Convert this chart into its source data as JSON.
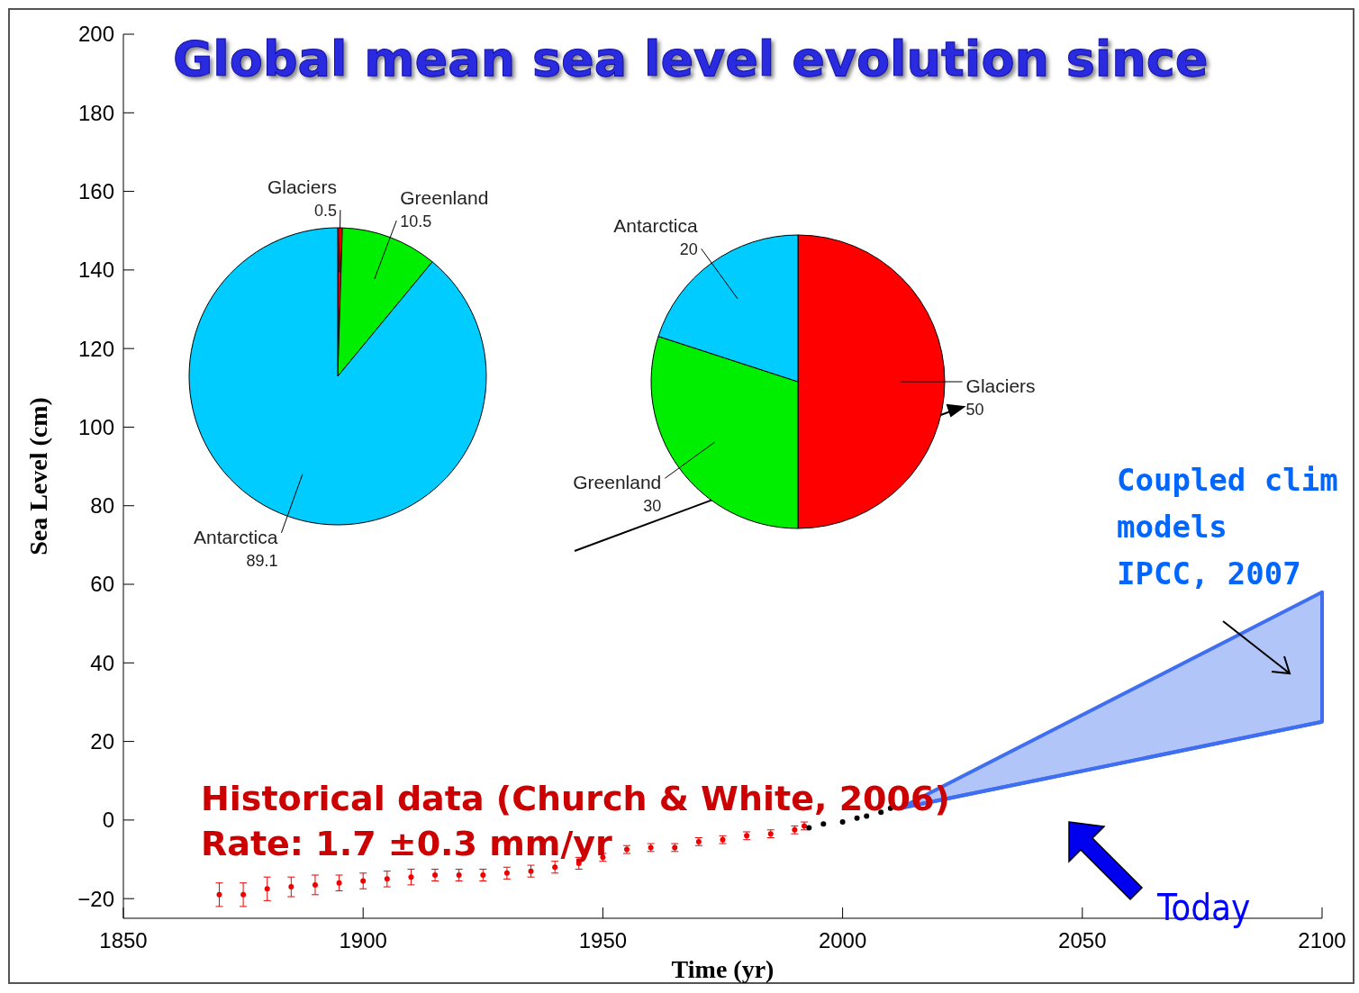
{
  "chart_data": [
    {
      "type": "scatter",
      "title": "Global mean sea level evolution since",
      "xlabel": "Time (yr)",
      "ylabel": "Sea Level (cm)",
      "xlim": [
        1850,
        2100
      ],
      "ylim": [
        -25,
        200
      ],
      "xticks": [
        1850,
        1900,
        1950,
        2000,
        2050,
        2100
      ],
      "yticks": [
        -20,
        0,
        20,
        40,
        60,
        80,
        100,
        120,
        140,
        160,
        180,
        200
      ],
      "grid": false,
      "marker": "circle",
      "annotations": [
        "Historical data (Church & White, 2006)",
        "Rate: 1.7 ±0.3 mm/yr",
        "Coupled clim",
        "models",
        "IPCC, 2007",
        "Today"
      ],
      "series": [
        {
          "type": "scatter",
          "color": "#ee0000",
          "x": [
            1870,
            1875,
            1880,
            1885,
            1890,
            1895,
            1900,
            1905,
            1910,
            1915,
            1920,
            1925,
            1930,
            1935,
            1940,
            1945,
            1950,
            1955,
            1960,
            1965,
            1970,
            1975,
            1980,
            1985,
            1990,
            1992
          ],
          "values": [
            -19,
            -19,
            -17.5,
            -17,
            -16.5,
            -16,
            -15.5,
            -15,
            -14.5,
            -14,
            -14,
            -14,
            -13.5,
            -13,
            -12,
            -11,
            -9.5,
            -7.5,
            -7,
            -7,
            -5.5,
            -5,
            -4,
            -3.5,
            -2.5,
            -1.5
          ],
          "errors": [
            3,
            3,
            3,
            2.5,
            2.5,
            2,
            2,
            2,
            2,
            1.5,
            1.5,
            1.5,
            1.5,
            1.5,
            1.5,
            1.5,
            1,
            1,
            1,
            1,
            1,
            1,
            1,
            1,
            1,
            1
          ]
        },
        {
          "type": "scatter",
          "color": "#000000",
          "x": [
            1993,
            1996,
            2000,
            2003,
            2005,
            2008,
            2010
          ],
          "values": [
            -2,
            -1,
            -0.5,
            0.5,
            1,
            2,
            3
          ]
        },
        {
          "type": "line",
          "color": "#3f6ff0",
          "marker": "none",
          "x": [
            2012,
            2100
          ],
          "values": [
            3,
            25
          ],
          "lower": [
            3,
            25
          ],
          "upper": [
            3,
            58
          ]
        }
      ]
    },
    {
      "type": "pie",
      "categories": [
        "Glaciers",
        "Greenland",
        "Antarctica"
      ],
      "values": [
        0.5,
        10.5,
        89.1
      ],
      "colors": [
        "#ff0000",
        "#00ee00",
        "#00ccff"
      ],
      "data_labels": true
    },
    {
      "type": "pie",
      "categories": [
        "Glaciers",
        "Greenland",
        "Antarctica"
      ],
      "values": [
        50,
        30,
        20
      ],
      "colors": [
        "#ff0000",
        "#00ee00",
        "#00ccff"
      ],
      "data_labels": true
    }
  ]
}
